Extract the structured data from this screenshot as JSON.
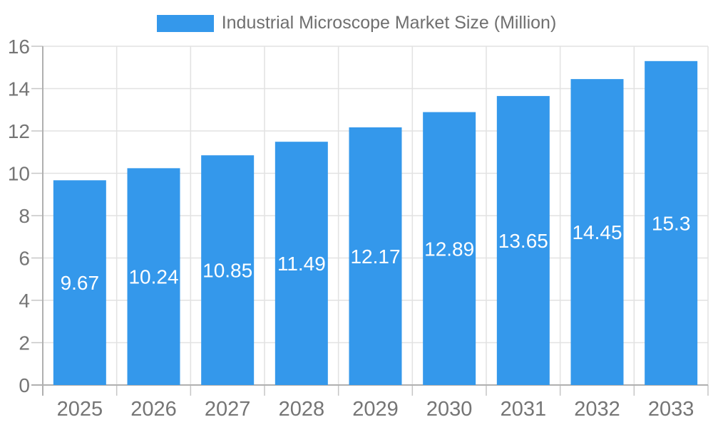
{
  "legend": {
    "label": "Industrial Microscope Market Size (Million)"
  },
  "colors": {
    "bar": "#3498EB",
    "axis_line": "#b0b0b0",
    "gridline": "#e2e2e2",
    "tick_mark": "#c6c6c6",
    "tick_label": "#757575",
    "legend_text": "#6f6f6f",
    "value_label": "#ffffff",
    "background": "#ffffff"
  },
  "chart_data": {
    "type": "bar",
    "title": "Industrial Microscope Market Size (Million)",
    "categories": [
      "2025",
      "2026",
      "2027",
      "2028",
      "2029",
      "2030",
      "2031",
      "2032",
      "2033"
    ],
    "values": [
      9.67,
      10.24,
      10.85,
      11.49,
      12.17,
      12.89,
      13.65,
      14.45,
      15.3
    ],
    "value_labels": [
      "9.67",
      "10.24",
      "10.85",
      "11.49",
      "12.17",
      "12.89",
      "13.65",
      "14.45",
      "15.3"
    ],
    "xlabel": "",
    "ylabel": "",
    "ylim": [
      0,
      16
    ],
    "yticks": [
      0,
      2,
      4,
      6,
      8,
      10,
      12,
      14,
      16
    ],
    "grid": true,
    "legend_position": "top",
    "value_label_position": "inside-center"
  }
}
